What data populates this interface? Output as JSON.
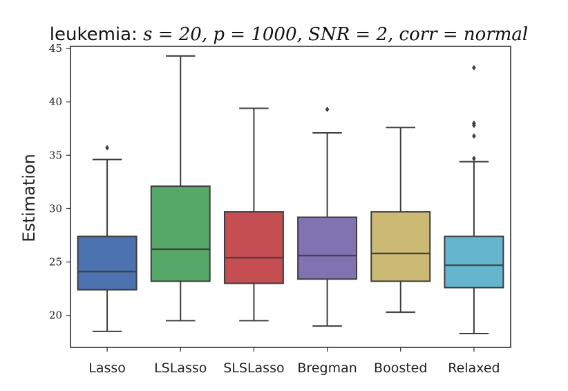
{
  "chart_data": {
    "type": "boxplot",
    "title_prefix": "leukemia:",
    "title_math": "s = 20, p = 1000, SNR = 2, corr = normal",
    "xlabel": "",
    "ylabel": "Estimation",
    "ylim": [
      17,
      45.2
    ],
    "yticks": [
      20,
      25,
      30,
      35,
      40,
      45
    ],
    "grid": false,
    "categories": [
      "Lasso",
      "LSLasso",
      "SLSLasso",
      "Bregman",
      "Boosted",
      "Relaxed"
    ],
    "boxes": [
      {
        "name": "Lasso",
        "whisker_low": 18.5,
        "q1": 22.4,
        "median": 24.1,
        "q3": 27.4,
        "whisker_high": 34.6,
        "outliers": [
          35.7
        ],
        "color": "#4c72b0"
      },
      {
        "name": "LSLasso",
        "whisker_low": 19.5,
        "q1": 23.2,
        "median": 26.2,
        "q3": 32.1,
        "whisker_high": 44.3,
        "outliers": [],
        "color": "#55a868"
      },
      {
        "name": "SLSLasso",
        "whisker_low": 19.5,
        "q1": 23.0,
        "median": 25.4,
        "q3": 29.7,
        "whisker_high": 39.4,
        "outliers": [],
        "color": "#c44e52"
      },
      {
        "name": "Bregman",
        "whisker_low": 19.0,
        "q1": 23.4,
        "median": 25.6,
        "q3": 29.2,
        "whisker_high": 37.1,
        "outliers": [
          39.3
        ],
        "color": "#8172b2"
      },
      {
        "name": "Boosted",
        "whisker_low": 20.3,
        "q1": 23.2,
        "median": 25.8,
        "q3": 29.7,
        "whisker_high": 37.6,
        "outliers": [],
        "color": "#ccb974"
      },
      {
        "name": "Relaxed",
        "whisker_low": 18.3,
        "q1": 22.6,
        "median": 24.7,
        "q3": 27.4,
        "whisker_high": 34.4,
        "outliers": [
          34.7,
          36.8,
          37.8,
          38.0,
          43.2
        ],
        "color": "#64b5cd"
      }
    ]
  }
}
